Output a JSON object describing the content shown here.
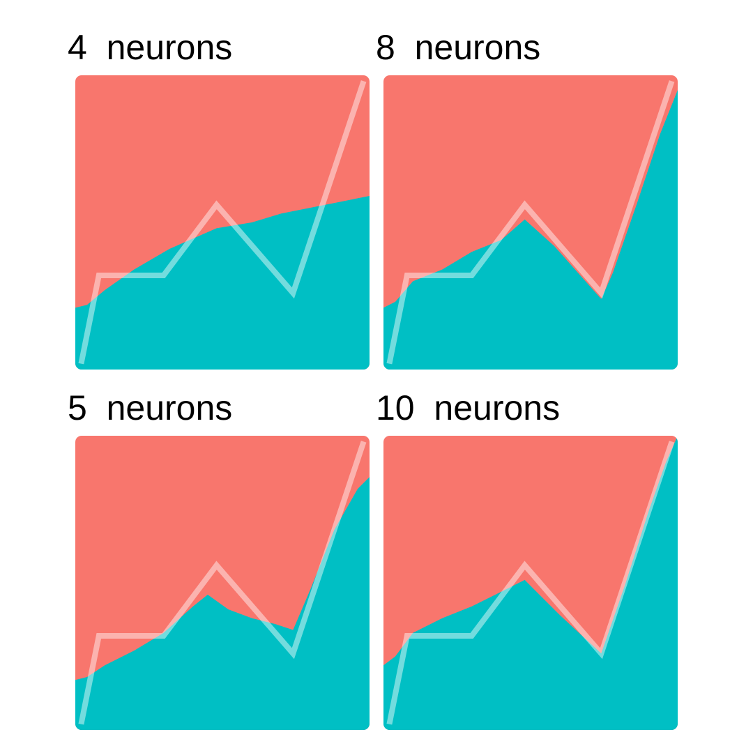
{
  "colors": {
    "region_a": "#F8766D",
    "region_b": "#00BFC4",
    "path_line": "#ffffff"
  },
  "chart_data": [
    {
      "type": "area",
      "title": "4  neurons",
      "xlim": [
        0,
        1
      ],
      "ylim": [
        0,
        1
      ],
      "grid": false,
      "path": {
        "x": [
          0.02,
          0.08,
          0.3,
          0.48,
          0.74,
          0.98
        ],
        "y": [
          0.02,
          0.32,
          0.32,
          0.56,
          0.26,
          0.98
        ]
      },
      "boundary": {
        "x": [
          0.0,
          0.04,
          0.1,
          0.2,
          0.32,
          0.48,
          0.6,
          0.7,
          0.8,
          0.9,
          1.0
        ],
        "y": [
          0.21,
          0.22,
          0.27,
          0.34,
          0.41,
          0.48,
          0.5,
          0.53,
          0.55,
          0.57,
          0.59
        ]
      }
    },
    {
      "type": "area",
      "title": "8  neurons",
      "xlim": [
        0,
        1
      ],
      "ylim": [
        0,
        1
      ],
      "grid": false,
      "path": {
        "x": [
          0.02,
          0.08,
          0.3,
          0.48,
          0.74,
          0.98
        ],
        "y": [
          0.02,
          0.32,
          0.32,
          0.56,
          0.26,
          0.98
        ]
      },
      "boundary": {
        "x": [
          0.0,
          0.04,
          0.1,
          0.2,
          0.3,
          0.4,
          0.48,
          0.58,
          0.66,
          0.74,
          0.78,
          0.86,
          0.94,
          1.0
        ],
        "y": [
          0.21,
          0.23,
          0.3,
          0.34,
          0.4,
          0.44,
          0.51,
          0.42,
          0.33,
          0.24,
          0.33,
          0.56,
          0.8,
          0.95
        ]
      }
    },
    {
      "type": "area",
      "title": "5  neurons",
      "xlim": [
        0,
        1
      ],
      "ylim": [
        0,
        1
      ],
      "grid": false,
      "path": {
        "x": [
          0.02,
          0.08,
          0.3,
          0.48,
          0.74,
          0.98
        ],
        "y": [
          0.02,
          0.32,
          0.32,
          0.56,
          0.26,
          0.98
        ]
      },
      "boundary": {
        "x": [
          0.0,
          0.04,
          0.1,
          0.2,
          0.3,
          0.4,
          0.45,
          0.52,
          0.6,
          0.68,
          0.74,
          0.8,
          0.88,
          0.96,
          1.0
        ],
        "y": [
          0.17,
          0.18,
          0.22,
          0.27,
          0.33,
          0.42,
          0.46,
          0.41,
          0.38,
          0.36,
          0.34,
          0.48,
          0.68,
          0.82,
          0.86
        ]
      }
    },
    {
      "type": "area",
      "title": "10  neurons",
      "xlim": [
        0,
        1
      ],
      "ylim": [
        0,
        1
      ],
      "grid": false,
      "path": {
        "x": [
          0.02,
          0.08,
          0.3,
          0.48,
          0.74,
          0.98
        ],
        "y": [
          0.02,
          0.32,
          0.32,
          0.56,
          0.26,
          0.98
        ]
      },
      "boundary": {
        "x": [
          0.0,
          0.04,
          0.1,
          0.2,
          0.3,
          0.4,
          0.48,
          0.6,
          0.74,
          0.82,
          0.9,
          0.96,
          1.0
        ],
        "y": [
          0.22,
          0.25,
          0.33,
          0.38,
          0.42,
          0.47,
          0.51,
          0.39,
          0.26,
          0.49,
          0.74,
          0.91,
          1.0
        ]
      }
    }
  ]
}
